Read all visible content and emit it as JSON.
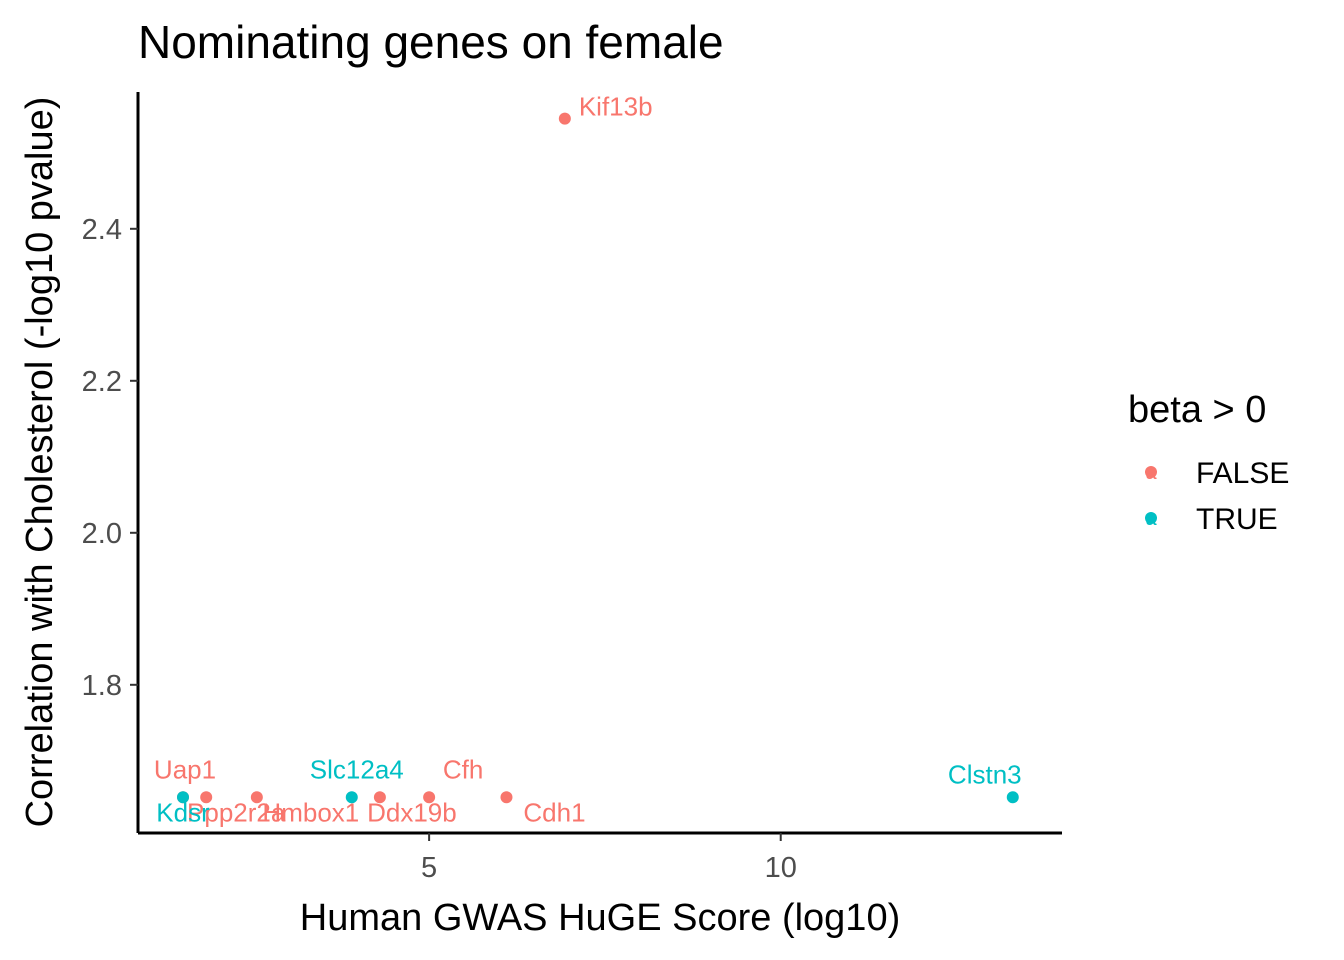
{
  "colors": {
    "FALSE": "#F8766D",
    "TRUE": "#00BFC4"
  },
  "chart_data": {
    "type": "scatter",
    "title": "Nominating genes on female",
    "xlabel": "Human GWAS HuGE Score (log10)",
    "ylabel": "Correlation with Cholesterol (-log10 pvalue)",
    "xlim": [
      0.86,
      14.0
    ],
    "ylim": [
      1.605,
      2.58
    ],
    "x_ticks": [
      5,
      10
    ],
    "y_ticks": [
      1.8,
      2.0,
      2.2,
      2.4
    ],
    "grid": false,
    "legend": {
      "title": "beta > 0",
      "position": "right",
      "entries": [
        {
          "label": "FALSE",
          "key": "a"
        },
        {
          "label": "TRUE",
          "key": "a"
        }
      ]
    },
    "points": [
      {
        "gene": "Kif13b",
        "x": 6.93,
        "y": 2.545,
        "beta_pos": "FALSE"
      },
      {
        "gene": "Uap1",
        "x": 1.5,
        "y": 1.652,
        "beta_pos": "FALSE"
      },
      {
        "gene": "Ppp2r2a",
        "x": 1.83,
        "y": 1.652,
        "beta_pos": "FALSE"
      },
      {
        "gene": "Kdsr",
        "x": 1.5,
        "y": 1.652,
        "beta_pos": "TRUE"
      },
      {
        "gene": "Hmbox1",
        "x": 2.55,
        "y": 1.652,
        "beta_pos": "FALSE"
      },
      {
        "gene": "Slc12a4",
        "x": 3.9,
        "y": 1.652,
        "beta_pos": "TRUE"
      },
      {
        "gene": "Ddx19b",
        "x": 4.3,
        "y": 1.652,
        "beta_pos": "FALSE"
      },
      {
        "gene": "Cfh",
        "x": 5.0,
        "y": 1.652,
        "beta_pos": "FALSE"
      },
      {
        "gene": "Cdh1",
        "x": 6.1,
        "y": 1.652,
        "beta_pos": "FALSE"
      },
      {
        "gene": "Clstn3",
        "x": 13.3,
        "y": 1.652,
        "beta_pos": "TRUE"
      }
    ]
  }
}
